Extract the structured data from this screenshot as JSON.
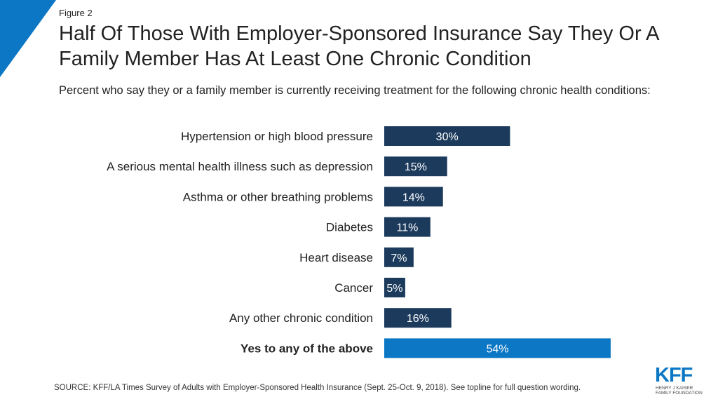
{
  "figure_label": "Figure 2",
  "title": "Half Of Those With Employer-Sponsored Insurance Say They Or A Family Member Has At Least One Chronic Condition",
  "subtitle": "Percent who say they or a family member is currently receiving treatment for the following chronic health conditions:",
  "source": "SOURCE: KFF/LA Times Survey of Adults with Employer-Sponsored Health Insurance  (Sept. 25-Oct. 9, 2018). See topline for full question wording.",
  "logo": {
    "mark": "KFF",
    "line1": "Henry J Kaiser",
    "line2": "Family Foundation"
  },
  "colors": {
    "bar": "#1b3a5c",
    "bar_highlight": "#0c77c4",
    "corner": "#0c77c4"
  },
  "chart_data": {
    "type": "bar",
    "orientation": "horizontal",
    "categories": [
      "Hypertension or high blood pressure",
      "A serious mental health illness such as depression",
      "Asthma or other breathing problems",
      "Diabetes",
      "Heart disease",
      "Cancer",
      "Any other chronic condition",
      "Yes to any of the above"
    ],
    "values": [
      30,
      15,
      14,
      11,
      7,
      5,
      16,
      54
    ],
    "labels": [
      "30%",
      "15%",
      "14%",
      "11%",
      "7%",
      "5%",
      "16%",
      "54%"
    ],
    "highlight": [
      false,
      false,
      false,
      false,
      false,
      false,
      false,
      true
    ],
    "xlim": [
      0,
      100
    ],
    "unit": "%"
  }
}
